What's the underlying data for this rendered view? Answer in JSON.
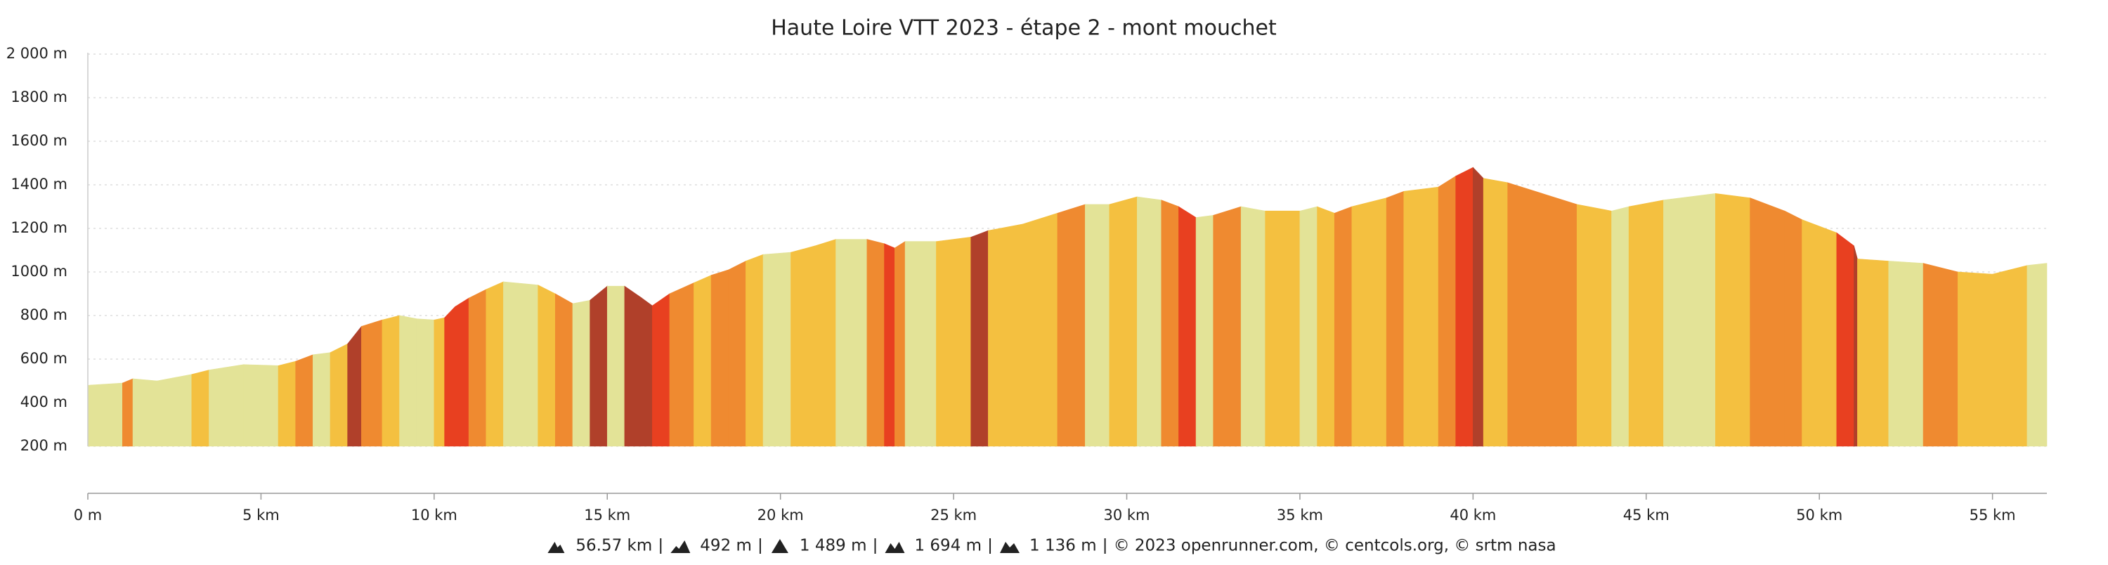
{
  "chart_data": {
    "type": "area",
    "title": "Haute Loire VTT 2023 - étape 2 - mont mouchet",
    "x": [
      0,
      1,
      1.3,
      2,
      3,
      3.5,
      4.5,
      5.5,
      6,
      6.5,
      7,
      7.5,
      7.9,
      8.5,
      9,
      9.5,
      10,
      10.3,
      10.6,
      11,
      11.5,
      12,
      13,
      13.5,
      14,
      14.5,
      15,
      15.5,
      16,
      16.3,
      16.8,
      17.5,
      18,
      18.5,
      19,
      19.5,
      20.3,
      21,
      21.6,
      22.5,
      23,
      23.3,
      23.6,
      24.5,
      25.5,
      26,
      27,
      28,
      28.8,
      29.5,
      30.3,
      31,
      31.5,
      32,
      32.5,
      33.3,
      34,
      35,
      35.5,
      36,
      36.5,
      37.5,
      38,
      39,
      39.5,
      40,
      40.3,
      41,
      42,
      43,
      44,
      44.5,
      45.5,
      47,
      48,
      49,
      49.5,
      50.5,
      51,
      51.1,
      52,
      53,
      54,
      55,
      56,
      56.57
    ],
    "values": [
      480,
      490,
      510,
      500,
      530,
      550,
      575,
      570,
      590,
      620,
      630,
      670,
      750,
      780,
      800,
      785,
      780,
      790,
      840,
      880,
      920,
      955,
      940,
      900,
      855,
      870,
      935,
      935,
      880,
      845,
      900,
      950,
      985,
      1010,
      1050,
      1080,
      1090,
      1120,
      1150,
      1150,
      1130,
      1110,
      1140,
      1140,
      1160,
      1190,
      1220,
      1270,
      1310,
      1310,
      1345,
      1330,
      1300,
      1250,
      1260,
      1300,
      1280,
      1280,
      1300,
      1270,
      1300,
      1340,
      1370,
      1390,
      1440,
      1480,
      1430,
      1410,
      1360,
      1310,
      1280,
      1300,
      1330,
      1360,
      1340,
      1280,
      1240,
      1180,
      1120,
      1060,
      1050,
      1040,
      1000,
      990,
      1030,
      1040
    ],
    "segment_colors": [
      "#e3e397",
      "#ef8a30",
      "#e3e397",
      "#e3e397",
      "#f4c040",
      "#e3e397",
      "#e3e397",
      "#f4c040",
      "#ef8a30",
      "#e3e397",
      "#f4c040",
      "#b0402a",
      "#ef8a30",
      "#f4c040",
      "#e3e397",
      "#e3e397",
      "#f4c040",
      "#e84020",
      "#e84020",
      "#ef8a30",
      "#f4c040",
      "#e3e397",
      "#f4c040",
      "#ef8a30",
      "#e3e397",
      "#b0402a",
      "#e3e397",
      "#b0402a",
      "#b0402a",
      "#e84020",
      "#ef8a30",
      "#f4c040",
      "#ef8a30",
      "#ef8a30",
      "#f4c040",
      "#e3e397",
      "#f4c040",
      "#f4c040",
      "#e3e397",
      "#ef8a30",
      "#e84020",
      "#ef8a30",
      "#e3e397",
      "#f4c040",
      "#b0402a",
      "#f4c040",
      "#f4c040",
      "#ef8a30",
      "#e3e397",
      "#f4c040",
      "#e3e397",
      "#ef8a30",
      "#e84020",
      "#e3e397",
      "#ef8a30",
      "#e3e397",
      "#f4c040",
      "#e3e397",
      "#f4c040",
      "#ef8a30",
      "#f4c040",
      "#ef8a30",
      "#f4c040",
      "#ef8a30",
      "#e84020",
      "#b0402a",
      "#f4c040",
      "#ef8a30",
      "#ef8a30",
      "#f4c040",
      "#e3e397",
      "#f4c040",
      "#e3e397",
      "#f4c040",
      "#ef8a30",
      "#ef8a30",
      "#f4c040",
      "#e84020",
      "#b0402a",
      "#f4c040",
      "#e3e397",
      "#ef8a30",
      "#f4c040",
      "#f4c040",
      "#e3e397"
    ],
    "xlim": [
      0,
      56.57
    ],
    "xticks": [
      {
        "value": 0,
        "label": "0 m"
      },
      {
        "value": 5,
        "label": "5 km"
      },
      {
        "value": 10,
        "label": "10 km"
      },
      {
        "value": 15,
        "label": "15 km"
      },
      {
        "value": 20,
        "label": "20 km"
      },
      {
        "value": 25,
        "label": "25 km"
      },
      {
        "value": 30,
        "label": "30 km"
      },
      {
        "value": 35,
        "label": "35 km"
      },
      {
        "value": 40,
        "label": "40 km"
      },
      {
        "value": 45,
        "label": "45 km"
      },
      {
        "value": 50,
        "label": "50 km"
      },
      {
        "value": 55,
        "label": "55 km"
      }
    ],
    "ylim": [
      0,
      2000
    ],
    "yticks": [
      {
        "value": 200,
        "label": "200 m"
      },
      {
        "value": 400,
        "label": "400 m"
      },
      {
        "value": 600,
        "label": "600 m"
      },
      {
        "value": 800,
        "label": "800 m"
      },
      {
        "value": 1000,
        "label": "1000 m"
      },
      {
        "value": 1200,
        "label": "1200 m"
      },
      {
        "value": 1400,
        "label": "1400 m"
      },
      {
        "value": 1600,
        "label": "1600 m"
      },
      {
        "value": 1800,
        "label": "1800 m"
      },
      {
        "value": 2000,
        "label": "2 000 m"
      }
    ],
    "grid": true,
    "stats": [
      "56.57 km",
      "492 m",
      "1 489 m",
      "1 694 m",
      "1 136 m",
      "© 2023 openrunner.com, © centcols.org, © srtm nasa"
    ]
  }
}
